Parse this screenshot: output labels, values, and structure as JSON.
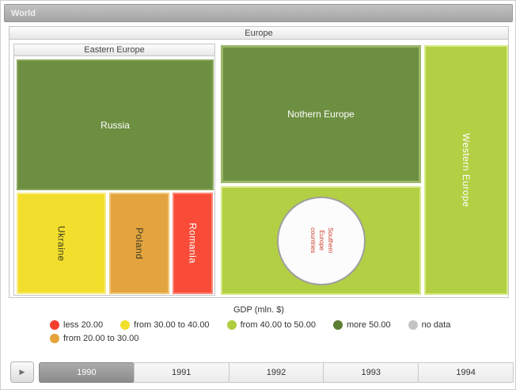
{
  "title_bar": {
    "label": "World"
  },
  "treemap": {
    "europe": {
      "label": "Europe"
    },
    "eastern": {
      "label": "Eastern Europe"
    },
    "nodes": {
      "russia": "Russia",
      "ukraine": "Ukraine",
      "poland": "Poland",
      "romania": "Romania",
      "northern": "Nothern Europe",
      "southern": "Southern Europe countries",
      "western": "Western Europe"
    }
  },
  "legend": {
    "title": "GDP (mln. $)",
    "items": [
      {
        "label": "less 20.00",
        "color": "#f5402e"
      },
      {
        "label": "from 30.00 to 40.00",
        "color": "#f2de2c"
      },
      {
        "label": "from 40.00 to 50.00",
        "color": "#b0cc3e"
      },
      {
        "label": "more 50.00",
        "color": "#5d7d33"
      },
      {
        "label": "no data",
        "color": "#c4c4c4"
      },
      {
        "label": "from 20.00 to 30.00",
        "color": "#e5a43a"
      }
    ]
  },
  "timeline": {
    "play_icon": "▶",
    "years": [
      "1990",
      "1991",
      "1992",
      "1993",
      "1994"
    ],
    "selected_year": "1990"
  },
  "chart_data": {
    "type": "treemap",
    "title": "World",
    "legend_title": "GDP (mln. $)",
    "color_scale": [
      {
        "label": "less 20.00",
        "color": "#f5402e"
      },
      {
        "label": "from 20.00 to 30.00",
        "color": "#e5a43a"
      },
      {
        "label": "from 30.00 to 40.00",
        "color": "#f2de2c"
      },
      {
        "label": "from 40.00 to 50.00",
        "color": "#b0cc3e"
      },
      {
        "label": "more 50.00",
        "color": "#5d7d33"
      },
      {
        "label": "no data",
        "color": "#c4c4c4"
      }
    ],
    "tree": {
      "name": "Europe",
      "children": [
        {
          "name": "Eastern Europe",
          "children": [
            {
              "name": "Russia",
              "gdp_class": "more 50.00"
            },
            {
              "name": "Ukraine",
              "gdp_class": "from 30.00 to 40.00"
            },
            {
              "name": "Poland",
              "gdp_class": "from 20.00 to 30.00"
            },
            {
              "name": "Romania",
              "gdp_class": "less 20.00"
            }
          ]
        },
        {
          "name": "Nothern Europe",
          "gdp_class": "more 50.00"
        },
        {
          "name": "Southern Europe countries",
          "gdp_class": "from 40.00 to 50.00",
          "marker": "circle"
        },
        {
          "name": "Western Europe",
          "gdp_class": "from 40.00 to 50.00"
        }
      ]
    },
    "timeline": {
      "years": [
        "1990",
        "1991",
        "1992",
        "1993",
        "1994"
      ],
      "selected": "1990"
    }
  }
}
